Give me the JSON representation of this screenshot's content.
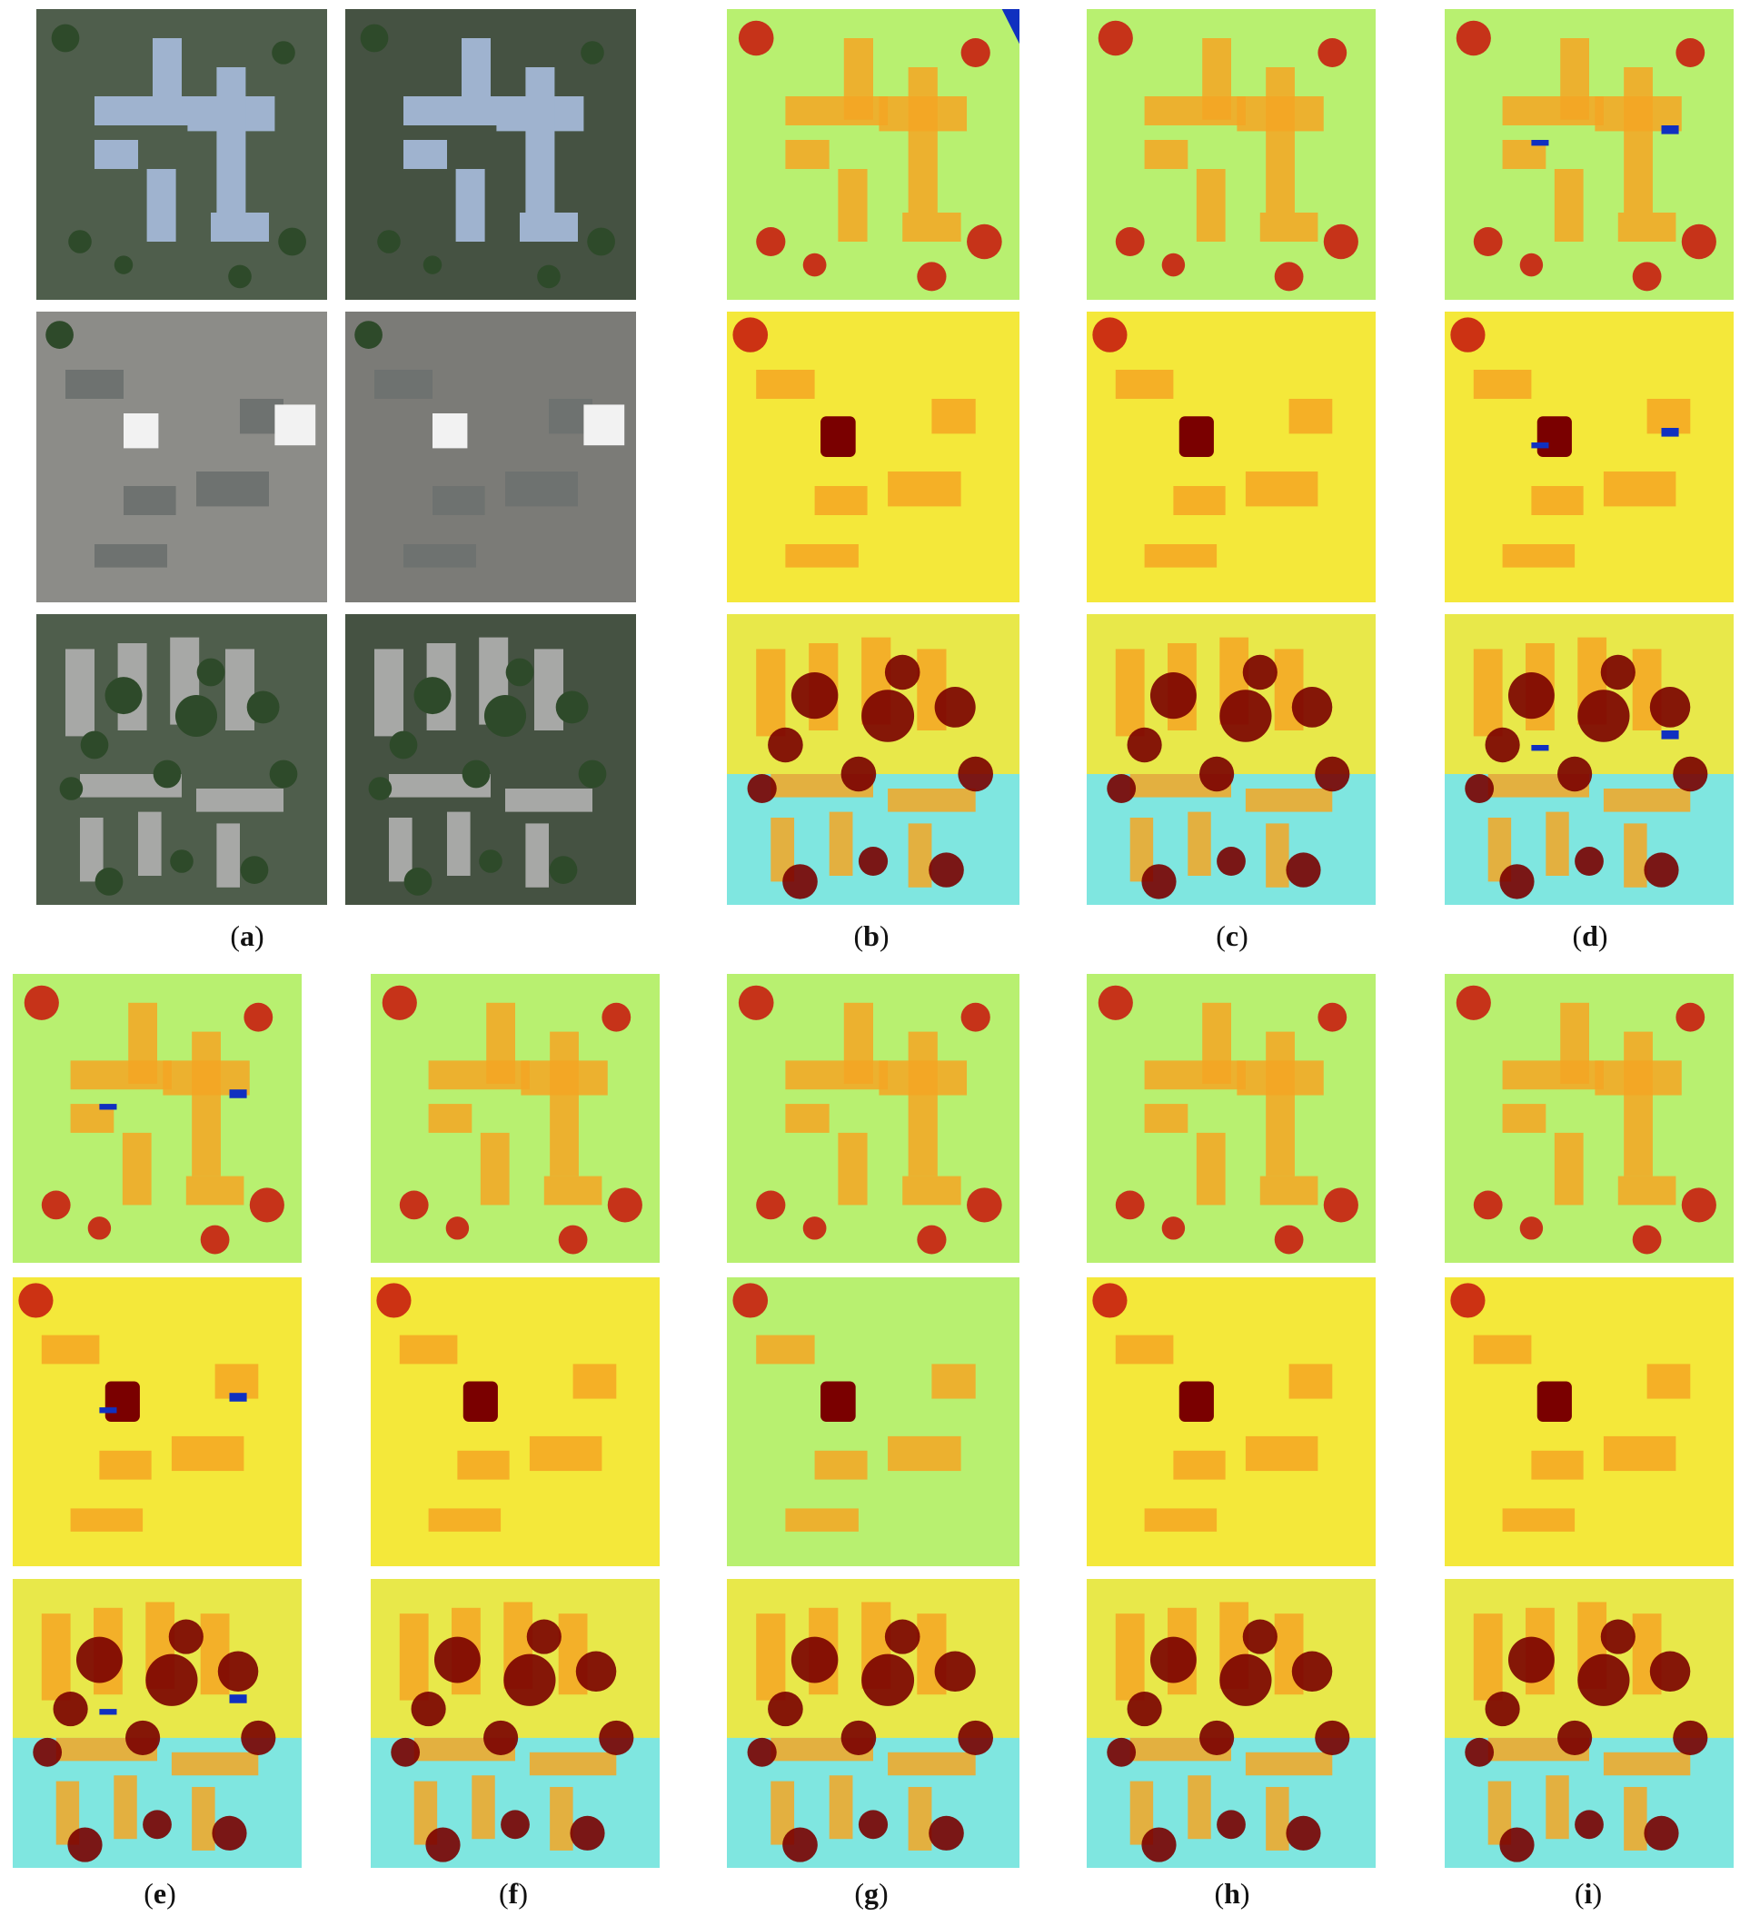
{
  "figure": {
    "captions": [
      {
        "id": "a",
        "open": "(",
        "letter": "a",
        "close": ")"
      },
      {
        "id": "b",
        "open": "(",
        "letter": "b",
        "close": ")"
      },
      {
        "id": "c",
        "open": "(",
        "letter": "c",
        "close": ")"
      },
      {
        "id": "d",
        "open": "(",
        "letter": "d",
        "close": ")"
      },
      {
        "id": "e",
        "open": "(",
        "letter": "e",
        "close": ")"
      },
      {
        "id": "f",
        "open": "(",
        "letter": "f",
        "close": ")"
      },
      {
        "id": "g",
        "open": "(",
        "letter": "g",
        "close": ")"
      },
      {
        "id": "h",
        "open": "(",
        "letter": "h",
        "close": ")"
      },
      {
        "id": "i",
        "open": "(",
        "letter": "i",
        "close": ")"
      }
    ],
    "panels": [
      {
        "id": "a",
        "kind": "stereo-image-pairs",
        "rows": 3,
        "cols": 2
      },
      {
        "id": "b",
        "kind": "height-map",
        "rows": 3
      },
      {
        "id": "c",
        "kind": "height-map",
        "rows": 3
      },
      {
        "id": "d",
        "kind": "height-map",
        "rows": 3
      },
      {
        "id": "e",
        "kind": "height-map",
        "rows": 3
      },
      {
        "id": "f",
        "kind": "height-map",
        "rows": 3
      },
      {
        "id": "g",
        "kind": "height-map",
        "rows": 3
      },
      {
        "id": "h",
        "kind": "height-map",
        "rows": 3
      },
      {
        "id": "i",
        "kind": "height-map",
        "rows": 3
      }
    ],
    "colors": {
      "map_background_low": "#b8f070",
      "map_background_mid": "#f4e83a",
      "building": "#f5a623",
      "tall": "#c81e10",
      "highest": "#7a0000",
      "ground_cyan": "#7fe6e0",
      "nodata": "#1030c0",
      "photo_ground": "#4f5e4c",
      "photo_roof": "#9fb3cf",
      "photo_urban": "#8c8c88",
      "photo_white_roof": "#f2f2f2",
      "photo_tree": "#2e4a2a"
    }
  }
}
